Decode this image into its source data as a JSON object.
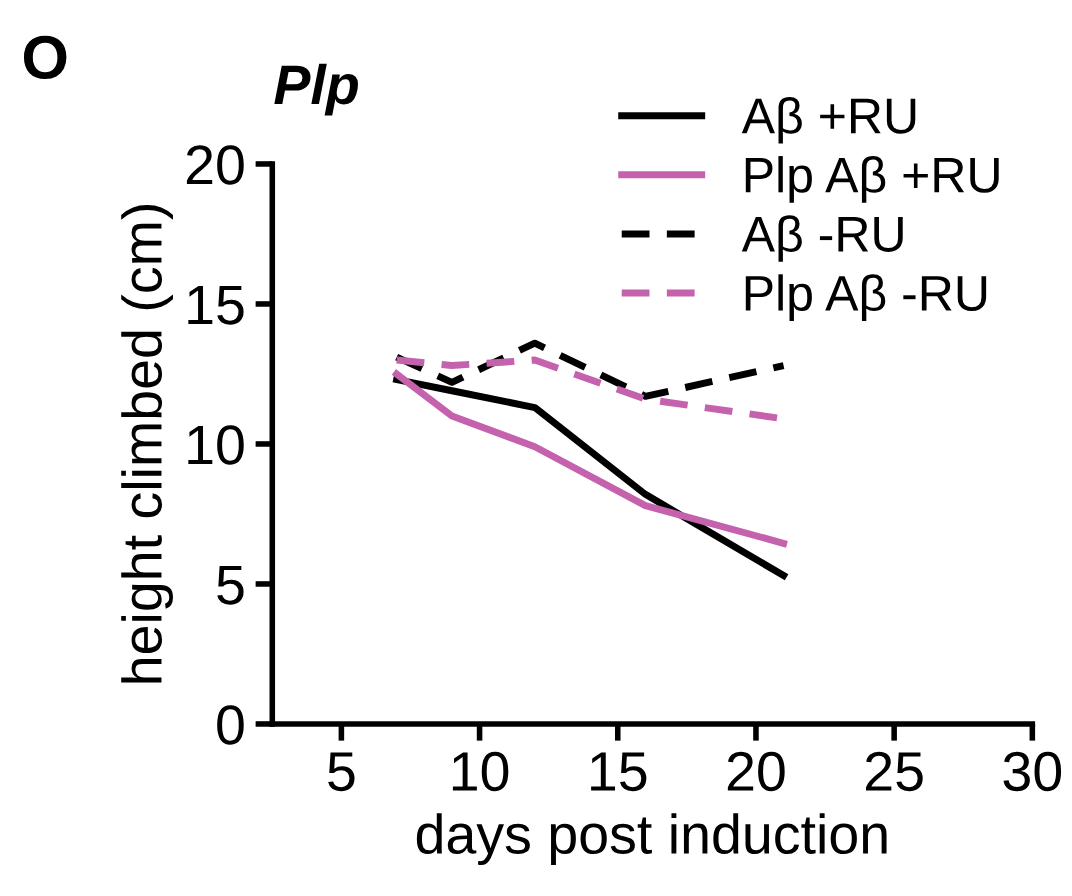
{
  "chart_data": {
    "type": "line",
    "title": "Plp",
    "annotations": [
      "O"
    ],
    "xlabel": "days post induction",
    "ylabel": "height climbed (cm)",
    "x": [
      7,
      9,
      12,
      16,
      21
    ],
    "series": [
      {
        "name": "Aβ +RU",
        "color": "#000000",
        "line_style": "solid",
        "values": [
          12.3,
          11.9,
          11.3,
          8.2,
          5.3
        ]
      },
      {
        "name": "Plp Aβ +RU",
        "color": "#c562ae",
        "line_style": "solid",
        "values": [
          12.5,
          11.0,
          9.9,
          7.8,
          6.45
        ]
      },
      {
        "name": "Aβ -RU",
        "color": "#000000",
        "line_style": "dashed",
        "values": [
          13.1,
          12.2,
          13.6,
          11.7,
          12.8
        ]
      },
      {
        "name": "Plp Aβ -RU",
        "color": "#c562ae",
        "line_style": "dashed",
        "values": [
          13.0,
          12.8,
          13.0,
          11.6,
          10.9
        ]
      }
    ],
    "xlim": [
      2.5,
      30
    ],
    "xticks": [
      5,
      10,
      15,
      20,
      25,
      30
    ],
    "ylim": [
      0,
      20
    ],
    "yticks": [
      0,
      5,
      10,
      15,
      20
    ],
    "grid": false,
    "legend": "top right",
    "marker": "none"
  }
}
